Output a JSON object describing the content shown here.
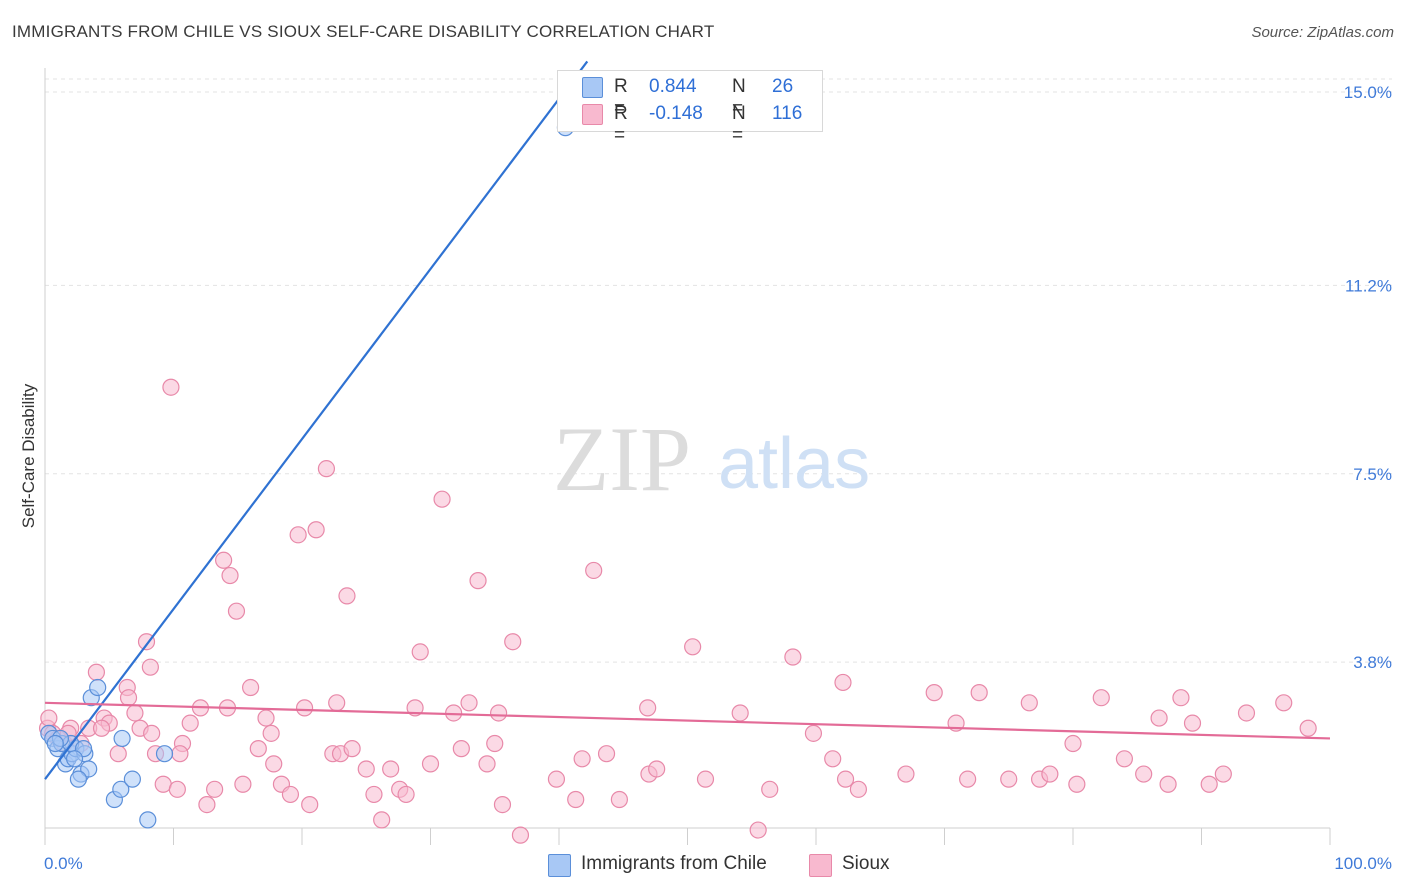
{
  "title": "IMMIGRANTS FROM CHILE VS SIOUX SELF-CARE DISABILITY CORRELATION CHART",
  "source": "Source: ZipAtlas.com",
  "watermark": {
    "zip": "ZIP",
    "atlas": "atlas"
  },
  "legend": {
    "rows": [
      {
        "r_label": "R =",
        "r_value": "0.844",
        "n_label": "N =",
        "n_value": "26",
        "color": "#a8c8f5"
      },
      {
        "r_label": "R =",
        "r_value": "-0.148",
        "n_label": "N =",
        "n_value": "116",
        "color": "#f8b9cf"
      }
    ]
  },
  "bottom_legend": [
    {
      "label": "Immigrants from Chile",
      "color": "#a8c8f5"
    },
    {
      "label": "Sioux",
      "color": "#f8b9cf"
    }
  ],
  "colors": {
    "chile_fill": "#a8c8f5",
    "chile_stroke": "#5b8fd9",
    "chile_line": "#2f72d2",
    "sioux_fill": "#f8b9cf",
    "sioux_stroke": "#e889a9",
    "sioux_line": "#e36b97",
    "grid": "#e3e3e3",
    "tick_label": "#3f7ad8"
  },
  "chart_data": {
    "type": "scatter",
    "title": "IMMIGRANTS FROM CHILE VS SIOUX SELF-CARE DISABILITY CORRELATION CHART",
    "xlabel": "",
    "ylabel": "Self-Care Disability",
    "xlim": [
      0,
      100
    ],
    "ylim": [
      0,
      15.6
    ],
    "x_tick_labels": [
      "0.0%",
      "100.0%"
    ],
    "y_ticks": [
      3.8,
      7.5,
      11.2,
      15.0
    ],
    "y_tick_labels": [
      "3.8%",
      "7.5%",
      "11.2%",
      "15.0%"
    ],
    "series": [
      {
        "name": "Immigrants from Chile",
        "x": [
          0.3,
          0.6,
          1.0,
          1.3,
          1.6,
          1.8,
          2.1,
          2.4,
          2.8,
          3.1,
          3.4,
          2.0,
          1.2,
          0.8,
          2.6,
          3.6,
          4.1,
          5.4,
          5.9,
          6.8,
          8.0,
          9.3,
          6.0,
          3.0,
          2.3,
          40.5
        ],
        "y": [
          2.4,
          2.3,
          2.1,
          2.2,
          1.8,
          1.9,
          2.0,
          2.1,
          1.6,
          2.0,
          1.7,
          2.2,
          2.3,
          2.2,
          1.5,
          3.1,
          3.3,
          1.1,
          1.3,
          1.5,
          0.7,
          2.0,
          2.3,
          2.1,
          1.9,
          14.3
        ]
      },
      {
        "name": "Sioux",
        "x": [
          0.2,
          0.6,
          1.0,
          1.5,
          2.0,
          2.8,
          3.4,
          4.0,
          4.6,
          5.0,
          5.7,
          6.4,
          7.0,
          7.4,
          7.9,
          8.2,
          8.6,
          9.2,
          9.8,
          10.3,
          10.7,
          11.3,
          12.1,
          12.6,
          13.2,
          13.9,
          14.4,
          14.9,
          15.4,
          16.0,
          16.6,
          17.2,
          17.8,
          18.4,
          19.1,
          19.7,
          20.2,
          20.6,
          21.1,
          21.9,
          22.4,
          23.0,
          23.5,
          23.9,
          25.0,
          25.6,
          26.2,
          26.9,
          27.6,
          28.1,
          29.2,
          30.0,
          30.9,
          31.8,
          32.4,
          33.0,
          33.7,
          34.4,
          35.0,
          35.6,
          36.4,
          37.0,
          39.8,
          41.3,
          41.8,
          42.7,
          43.7,
          44.7,
          47.0,
          47.6,
          50.4,
          51.4,
          55.5,
          56.4,
          58.2,
          59.8,
          61.3,
          62.3,
          63.3,
          67.0,
          69.2,
          70.9,
          71.8,
          72.7,
          75.0,
          76.6,
          77.4,
          78.2,
          80.3,
          82.2,
          84.0,
          85.5,
          86.7,
          87.4,
          89.3,
          90.6,
          91.7,
          93.5,
          96.4,
          98.3,
          0.3,
          1.8,
          4.4,
          6.5,
          8.3,
          10.5,
          14.2,
          17.6,
          22.7,
          28.8,
          35.3,
          46.9,
          54.1,
          62.1,
          80.0,
          88.4
        ],
        "y": [
          2.5,
          2.4,
          2.3,
          2.2,
          2.5,
          2.2,
          2.5,
          3.6,
          2.7,
          2.6,
          2.0,
          3.3,
          2.8,
          2.5,
          4.2,
          3.7,
          2.0,
          1.4,
          9.2,
          1.3,
          2.2,
          2.6,
          2.9,
          1.0,
          1.3,
          5.8,
          5.5,
          4.8,
          1.4,
          3.3,
          2.1,
          2.7,
          1.8,
          1.4,
          1.2,
          6.3,
          2.9,
          1.0,
          6.4,
          7.6,
          2.0,
          2.0,
          5.1,
          2.1,
          1.7,
          1.2,
          0.7,
          1.7,
          1.3,
          1.2,
          4.0,
          1.8,
          7.0,
          2.8,
          2.1,
          3.0,
          5.4,
          1.8,
          2.2,
          1.0,
          4.2,
          0.4,
          1.5,
          1.1,
          1.9,
          5.6,
          2.0,
          1.1,
          1.6,
          1.7,
          4.1,
          1.5,
          0.5,
          1.3,
          3.9,
          2.4,
          1.9,
          1.5,
          1.3,
          1.6,
          3.2,
          2.6,
          1.5,
          3.2,
          1.5,
          3.0,
          1.5,
          1.6,
          1.4,
          3.1,
          1.9,
          1.6,
          2.7,
          1.4,
          2.6,
          1.4,
          1.6,
          2.8,
          3.0,
          2.5,
          2.7,
          2.4,
          2.5,
          3.1,
          2.4,
          2.0,
          2.9,
          2.4,
          3.0,
          2.9,
          2.8,
          2.9,
          2.8,
          3.4,
          2.2,
          3.1
        ]
      }
    ],
    "trendlines": [
      {
        "series": "Immigrants from Chile",
        "x": [
          0,
          42.2
        ],
        "y": [
          1.5,
          15.6
        ]
      },
      {
        "series": "Sioux",
        "x": [
          0,
          100
        ],
        "y": [
          3.0,
          2.3
        ]
      }
    ]
  }
}
